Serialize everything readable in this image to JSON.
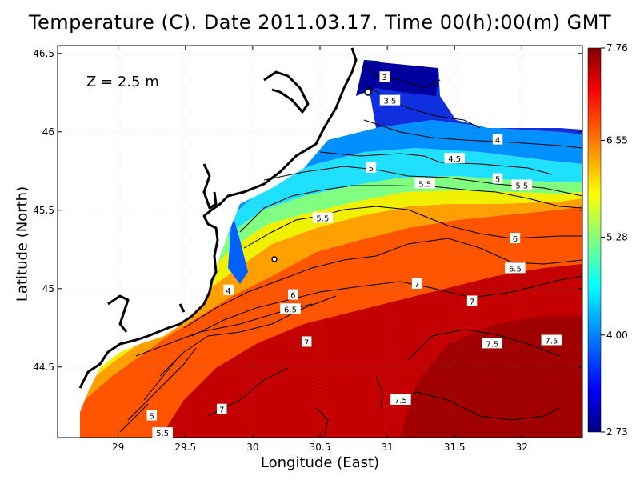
{
  "title": "Temperature (C). Date 2011.03.17. Time 00(h):00(m) GMT",
  "depth_label": "Z = 2.5 m",
  "chart_data": {
    "type": "heatmap",
    "title": "Temperature (C). Date 2011.03.17. Time 00(h):00(m) GMT",
    "xlabel": "Longitude (East)",
    "ylabel": "Latitude (North)",
    "xlim": [
      28.55,
      32.45
    ],
    "ylim": [
      44.05,
      46.55
    ],
    "x_ticks": [
      29,
      29.5,
      30,
      30.5,
      31,
      31.5,
      32
    ],
    "x_tick_labels": [
      "29",
      "29.5",
      "30",
      "30.5",
      "31",
      "31.5",
      "32"
    ],
    "y_ticks": [
      44.5,
      45,
      45.5,
      46,
      46.5
    ],
    "y_tick_labels": [
      "44.5",
      "45",
      "45.5",
      "46",
      "46.5"
    ],
    "grid": true,
    "colorbar": {
      "min": 2.73,
      "max": 7.76,
      "tick_values": [
        7.76,
        6.55,
        5.28,
        4.0,
        2.73
      ],
      "tick_labels": [
        "7.76",
        "6.55",
        "5.28",
        "4.00",
        "2.73"
      ],
      "colormap": [
        "#000080",
        "#0000ff",
        "#0080ff",
        "#00ffff",
        "#80ff80",
        "#ffff00",
        "#ff8000",
        "#ff0000",
        "#800000"
      ]
    },
    "contour_labels": [
      {
        "text": "3",
        "lon": 30.98,
        "lat": 46.35
      },
      {
        "text": "3.5",
        "lon": 31.02,
        "lat": 46.2
      },
      {
        "text": "4",
        "lon": 31.82,
        "lat": 45.95
      },
      {
        "text": "4.5",
        "lon": 31.5,
        "lat": 45.83
      },
      {
        "text": "5",
        "lon": 30.88,
        "lat": 45.77
      },
      {
        "text": "5",
        "lon": 31.82,
        "lat": 45.7
      },
      {
        "text": "5.5",
        "lon": 31.28,
        "lat": 45.67
      },
      {
        "text": "5.5",
        "lon": 32.0,
        "lat": 45.66
      },
      {
        "text": "5.5",
        "lon": 30.52,
        "lat": 45.45
      },
      {
        "text": "6",
        "lon": 31.95,
        "lat": 45.32
      },
      {
        "text": "6.5",
        "lon": 31.95,
        "lat": 45.13
      },
      {
        "text": "7",
        "lon": 31.22,
        "lat": 45.03
      },
      {
        "text": "7",
        "lon": 31.63,
        "lat": 44.92
      },
      {
        "text": "4",
        "lon": 29.82,
        "lat": 44.99
      },
      {
        "text": "6",
        "lon": 30.3,
        "lat": 44.96
      },
      {
        "text": "6.5",
        "lon": 30.28,
        "lat": 44.87
      },
      {
        "text": "7",
        "lon": 30.4,
        "lat": 44.66
      },
      {
        "text": "7.5",
        "lon": 31.78,
        "lat": 44.65
      },
      {
        "text": "7.5",
        "lon": 32.22,
        "lat": 44.67
      },
      {
        "text": "7.5",
        "lon": 31.1,
        "lat": 44.29
      },
      {
        "text": "7",
        "lon": 29.77,
        "lat": 44.23
      },
      {
        "text": "5",
        "lon": 29.25,
        "lat": 44.19
      },
      {
        "text": "5.5",
        "lon": 29.33,
        "lat": 44.08
      }
    ]
  }
}
